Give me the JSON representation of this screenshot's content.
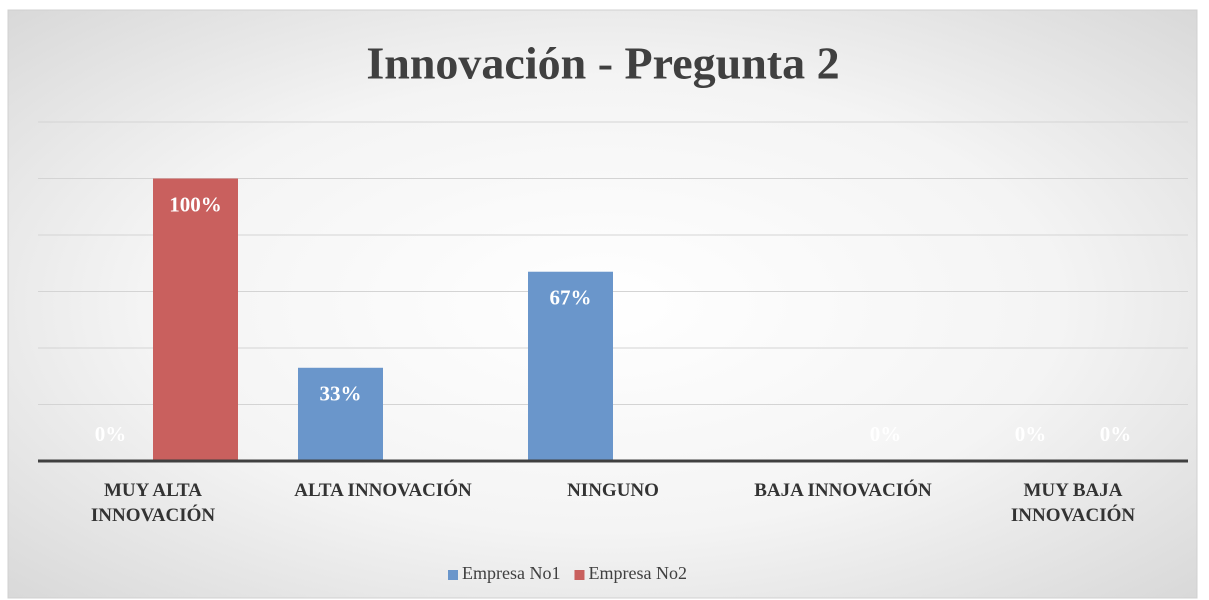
{
  "chart_data": {
    "type": "bar",
    "title": "Innovación - Pregunta 2",
    "categories": [
      "MUY ALTA INNOVACIÓN",
      "ALTA INNOVACIÓN",
      "NINGUNO",
      "BAJA INNOVACIÓN",
      "MUY BAJA INNOVACIÓN"
    ],
    "series": [
      {
        "name": "Empresa No1",
        "color": "#6a96cb",
        "values": [
          0,
          33,
          67,
          0,
          0
        ],
        "value_labels": [
          "0%",
          "33%",
          "67%",
          null,
          "0%"
        ]
      },
      {
        "name": "Empresa No2",
        "color": "#c9605e",
        "values": [
          100,
          0,
          0,
          0,
          0
        ],
        "value_labels": [
          "100%",
          null,
          null,
          "0%",
          "0%"
        ]
      }
    ],
    "ylim": [
      0,
      120
    ],
    "yticks": [
      0,
      20,
      40,
      60,
      80,
      100,
      120
    ],
    "grid": true,
    "legend": "bottom"
  }
}
